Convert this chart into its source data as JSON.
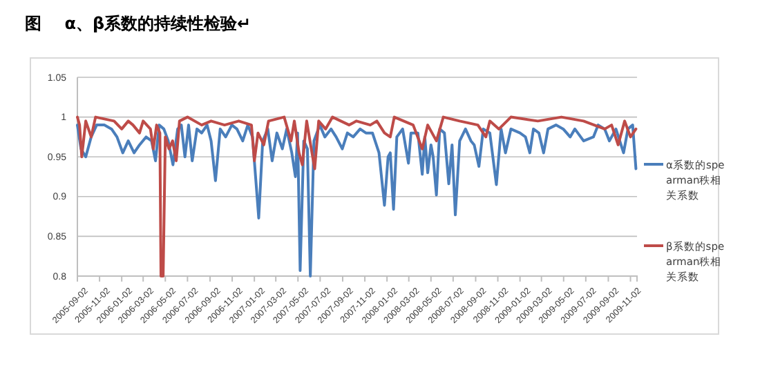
{
  "chart_data": {
    "type": "line",
    "title": "图    α、β系数的持续性检验↵",
    "xlim": [
      "2005-09-02",
      "2009-11-20"
    ],
    "xticks": [
      "2005-09-02",
      "2005-11-02",
      "2006-01-02",
      "2006-03-02",
      "2006-05-02",
      "2006-07-02",
      "2006-09-02",
      "2006-11-02",
      "2007-01-02",
      "2007-03-02",
      "2007-05-02",
      "2007-07-02",
      "2007-09-02",
      "2007-11-02",
      "2008-01-02",
      "2008-03-02",
      "2008-05-02",
      "2008-07-02",
      "2008-09-02",
      "2008-11-02",
      "2009-01-02",
      "2009-03-02",
      "2009-05-02",
      "2009-07-02",
      "2009-09-02",
      "2009-11-02"
    ],
    "ylim": [
      0.8,
      1.05
    ],
    "yticks": [
      0.8,
      0.85,
      0.9,
      0.95,
      1,
      1.05
    ],
    "grid": "y",
    "legend": "right",
    "series": [
      {
        "name": "α系数的spearman秩相关系数",
        "color": "#4a7ebb",
        "x": [
          "2005-09-02",
          "2005-09-12",
          "2005-09-25",
          "2005-10-10",
          "2005-10-25",
          "2005-11-15",
          "2005-12-05",
          "2005-12-20",
          "2006-01-05",
          "2006-01-20",
          "2006-02-05",
          "2006-02-20",
          "2006-03-10",
          "2006-03-25",
          "2006-04-05",
          "2006-04-15",
          "2006-04-28",
          "2006-05-10",
          "2006-05-23",
          "2006-06-05",
          "2006-06-15",
          "2006-06-25",
          "2006-07-05",
          "2006-07-15",
          "2006-07-28",
          "2006-08-10",
          "2006-08-25",
          "2006-09-05",
          "2006-09-17",
          "2006-09-30",
          "2006-10-15",
          "2006-11-01",
          "2006-11-15",
          "2006-12-01",
          "2006-12-15",
          "2006-12-28",
          "2007-01-14",
          "2007-01-25",
          "2007-02-08",
          "2007-02-20",
          "2007-03-05",
          "2007-03-20",
          "2007-04-01",
          "2007-04-15",
          "2007-04-25",
          "2007-05-01",
          "2007-05-08",
          "2007-05-18",
          "2007-05-28",
          "2007-06-05",
          "2007-06-15",
          "2007-07-01",
          "2007-07-15",
          "2007-08-01",
          "2007-08-15",
          "2007-09-01",
          "2007-09-15",
          "2007-10-01",
          "2007-10-20",
          "2007-11-05",
          "2007-11-23",
          "2007-12-11",
          "2007-12-26",
          "2008-01-05",
          "2008-01-11",
          "2008-01-20",
          "2008-01-29",
          "2008-02-14",
          "2008-03-01",
          "2008-03-08",
          "2008-03-27",
          "2008-04-08",
          "2008-04-15",
          "2008-04-23",
          "2008-05-02",
          "2008-05-08",
          "2008-05-17",
          "2008-05-26",
          "2008-06-08",
          "2008-06-20",
          "2008-06-29",
          "2008-07-08",
          "2008-07-20",
          "2008-08-05",
          "2008-08-20",
          "2008-08-29",
          "2008-09-11",
          "2008-09-23",
          "2008-10-11",
          "2008-10-29",
          "2008-11-11",
          "2008-11-23",
          "2008-12-08",
          "2009-01-02",
          "2009-01-17",
          "2009-01-29",
          "2009-02-08",
          "2009-02-23",
          "2009-03-08",
          "2009-03-20",
          "2009-04-11",
          "2009-05-01",
          "2009-05-20",
          "2009-06-02",
          "2009-06-26",
          "2009-07-23",
          "2009-08-05",
          "2009-08-23",
          "2009-09-05",
          "2009-09-23",
          "2009-10-14",
          "2009-10-26",
          "2009-11-08",
          "2009-11-17"
        ],
        "values": [
          0.99,
          0.96,
          0.95,
          0.975,
          0.99,
          0.99,
          0.985,
          0.975,
          0.955,
          0.97,
          0.955,
          0.965,
          0.975,
          0.97,
          0.945,
          0.99,
          0.985,
          0.97,
          0.94,
          0.985,
          0.99,
          0.95,
          0.99,
          0.945,
          0.985,
          0.98,
          0.99,
          0.97,
          0.92,
          0.985,
          0.975,
          0.99,
          0.985,
          0.97,
          0.99,
          0.975,
          0.873,
          0.97,
          0.985,
          0.945,
          0.98,
          0.96,
          0.985,
          0.955,
          0.925,
          0.98,
          0.807,
          0.97,
          0.96,
          0.8,
          0.97,
          0.99,
          0.975,
          0.985,
          0.975,
          0.96,
          0.98,
          0.975,
          0.985,
          0.98,
          0.98,
          0.955,
          0.889,
          0.95,
          0.955,
          0.884,
          0.975,
          0.985,
          0.942,
          0.98,
          0.98,
          0.928,
          0.975,
          0.93,
          0.965,
          0.95,
          0.902,
          0.985,
          0.98,
          0.916,
          0.965,
          0.877,
          0.97,
          0.985,
          0.97,
          0.965,
          0.938,
          0.985,
          0.98,
          0.915,
          0.985,
          0.955,
          0.985,
          0.98,
          0.975,
          0.955,
          0.985,
          0.98,
          0.955,
          0.985,
          0.99,
          0.985,
          0.975,
          0.985,
          0.97,
          0.975,
          0.99,
          0.985,
          0.97,
          0.985,
          0.955,
          0.985,
          0.99,
          0.935
        ]
      },
      {
        "name": "β系数的spearman秩相关系数",
        "color": "#be4b48",
        "x": [
          "2005-09-02",
          "2005-09-08",
          "2005-09-14",
          "2005-09-25",
          "2005-10-10",
          "2005-10-22",
          "2005-12-12",
          "2006-01-02",
          "2006-01-20",
          "2006-02-02",
          "2006-02-20",
          "2006-03-02",
          "2006-03-22",
          "2006-03-30",
          "2006-04-08",
          "2006-04-17",
          "2006-04-20",
          "2006-04-26",
          "2006-05-02",
          "2006-05-12",
          "2006-05-22",
          "2006-06-01",
          "2006-06-10",
          "2006-07-02",
          "2006-08-10",
          "2006-09-05",
          "2006-10-12",
          "2006-11-20",
          "2006-12-25",
          "2007-01-02",
          "2007-01-12",
          "2007-01-28",
          "2007-02-10",
          "2007-03-25",
          "2007-04-13",
          "2007-04-22",
          "2007-05-05",
          "2007-05-14",
          "2007-05-26",
          "2007-06-04",
          "2007-06-17",
          "2007-06-28",
          "2007-07-17",
          "2007-08-05",
          "2007-09-20",
          "2007-10-10",
          "2007-11-17",
          "2007-12-05",
          "2007-12-26",
          "2008-01-11",
          "2008-01-22",
          "2008-03-14",
          "2008-04-08",
          "2008-04-23",
          "2008-05-17",
          "2008-06-05",
          "2008-07-20",
          "2008-09-08",
          "2008-09-30",
          "2008-10-11",
          "2008-11-05",
          "2008-12-08",
          "2009-02-20",
          "2009-04-26",
          "2009-06-26",
          "2009-08-23",
          "2009-09-11",
          "2009-09-29",
          "2009-10-17",
          "2009-11-02",
          "2009-11-17"
        ],
        "values": [
          1,
          0.99,
          0.95,
          0.995,
          0.975,
          1,
          0.995,
          0.985,
          0.995,
          0.99,
          0.98,
          0.995,
          0.985,
          0.96,
          0.99,
          0.98,
          0.8,
          0.8,
          0.975,
          0.96,
          0.97,
          0.945,
          0.995,
          1,
          0.99,
          0.995,
          0.99,
          0.995,
          0.99,
          0.945,
          0.98,
          0.965,
          0.995,
          1,
          0.97,
          0.995,
          0.955,
          0.94,
          0.995,
          0.97,
          0.935,
          0.995,
          0.985,
          1,
          0.99,
          0.995,
          0.99,
          0.995,
          0.98,
          0.975,
          1,
          0.99,
          0.96,
          0.99,
          0.97,
          1,
          0.995,
          0.99,
          0.975,
          0.995,
          0.985,
          1,
          0.995,
          1,
          0.995,
          0.985,
          0.99,
          0.965,
          0.995,
          0.975,
          0.985
        ]
      }
    ]
  }
}
